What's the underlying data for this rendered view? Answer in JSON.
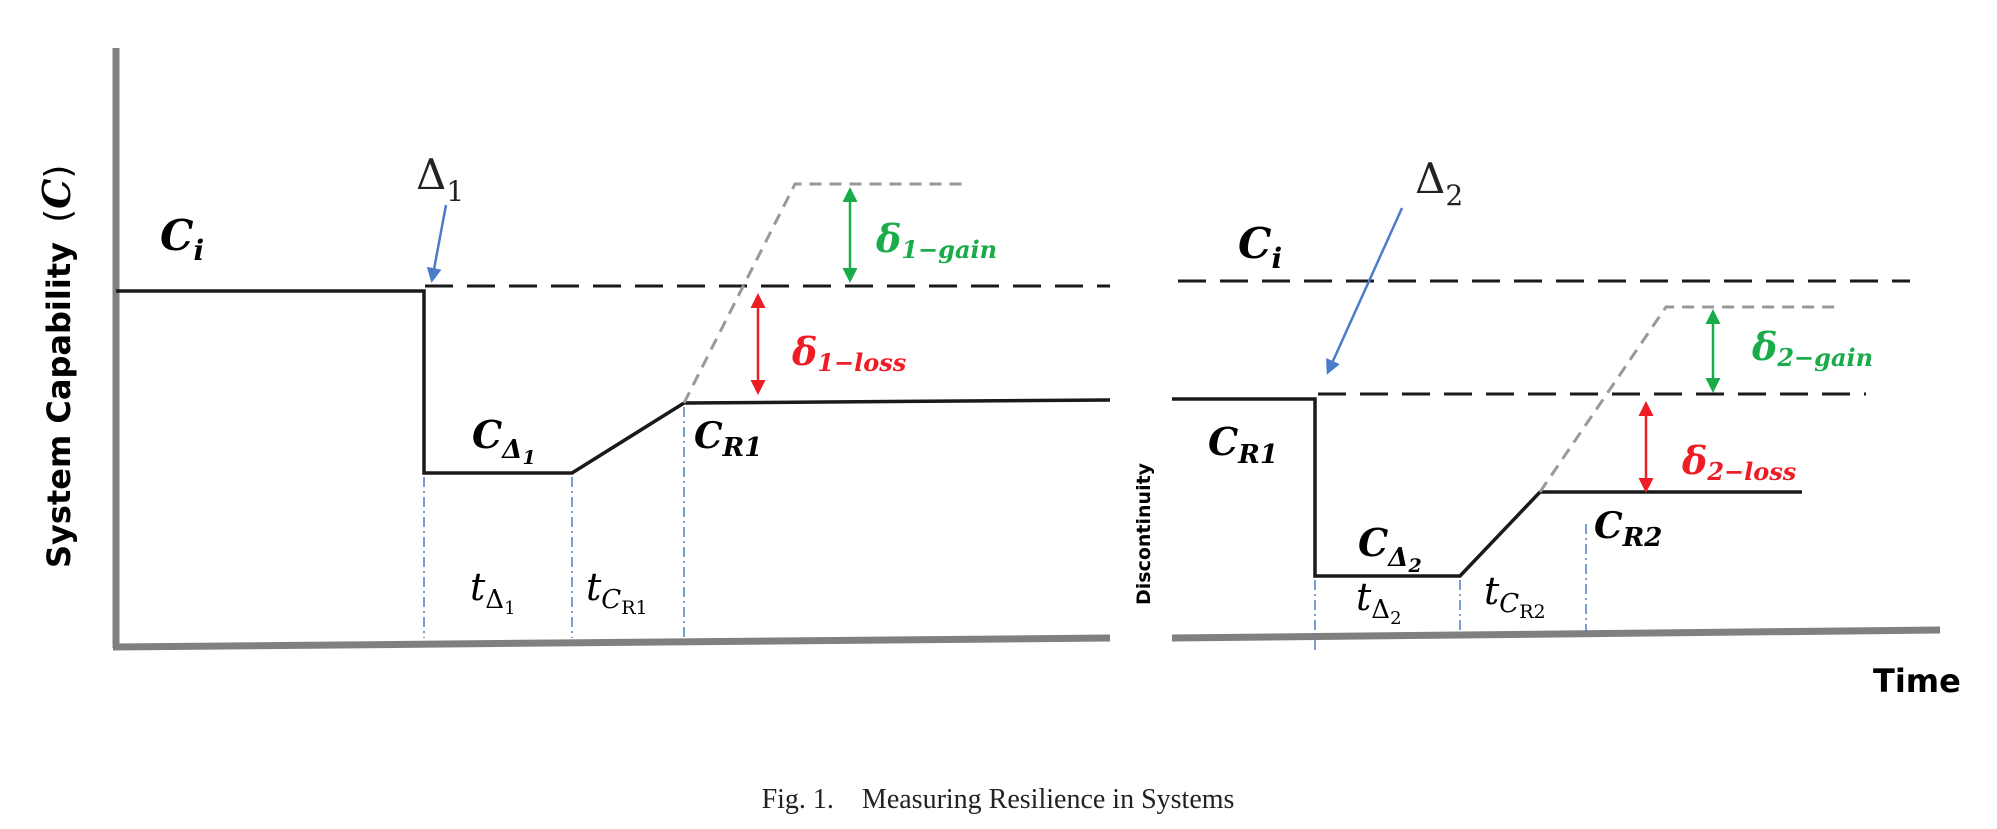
{
  "axes": {
    "y_label": "System Capability",
    "y_symbol": "C",
    "x_label": "Time",
    "separator_label": "Discontinuity"
  },
  "panel1": {
    "disruption": {
      "base": "Δ",
      "sub": "1"
    },
    "initial": {
      "base": "C",
      "sub": "i"
    },
    "degraded": {
      "base": "C",
      "sub": "Δ",
      "subsub": "1"
    },
    "recovered": {
      "base": "C",
      "sub": "R1"
    },
    "gain": {
      "base": "δ",
      "sub": "1−gain"
    },
    "loss": {
      "base": "δ",
      "sub": "1−loss"
    },
    "t_disruption": {
      "base": "t",
      "sub": "Δ",
      "subsub": "1"
    },
    "t_recovery": {
      "base": "t",
      "sub": "C",
      "subsub": "R1"
    }
  },
  "panel2": {
    "disruption": {
      "base": "Δ",
      "sub": "2"
    },
    "initial": {
      "base": "C",
      "sub": "i"
    },
    "start": {
      "base": "C",
      "sub": "R1"
    },
    "degraded": {
      "base": "C",
      "sub": "Δ",
      "subsub": "2"
    },
    "recovered": {
      "base": "C",
      "sub": "R2"
    },
    "gain": {
      "base": "δ",
      "sub": "2−gain"
    },
    "loss": {
      "base": "δ",
      "sub": "2−loss"
    },
    "t_disruption": {
      "base": "t",
      "sub": "Δ",
      "subsub": "2"
    },
    "t_recovery": {
      "base": "t",
      "sub": "C",
      "subsub": "R2"
    }
  },
  "caption": {
    "label": "Fig. 1.",
    "text": "Measuring Resilience in Systems"
  },
  "colors": {
    "axis": "#808080",
    "curve": "#1a1a1a",
    "dashed_reference": "#1a1a1a",
    "projection": "#999999",
    "guide": "#4a7cc9",
    "arrow_blue": "#4a7cc9",
    "gain": "#1aab4a",
    "loss": "#ee1c24"
  }
}
